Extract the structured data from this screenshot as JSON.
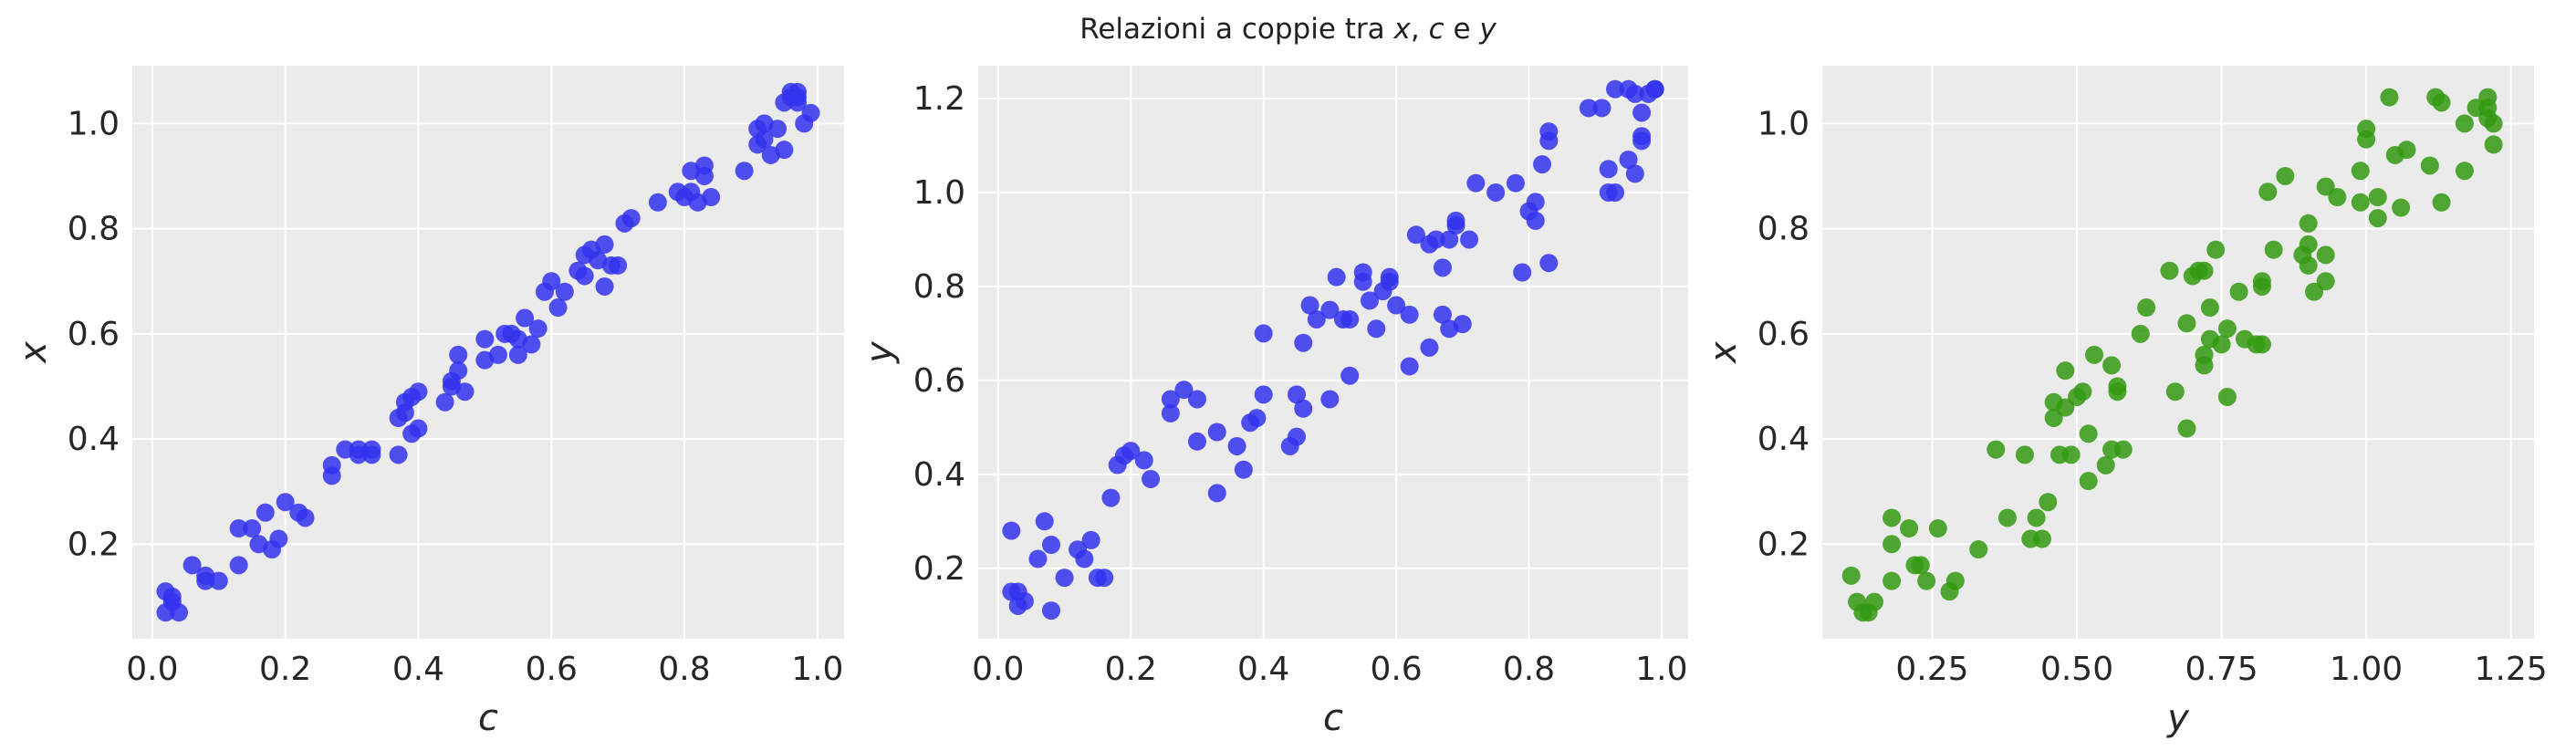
{
  "title": {
    "prefix": "Relazioni a coppie tra ",
    "v1": "x",
    "sep1": ", ",
    "v2": "c",
    "sep2": " e ",
    "v3": "y"
  },
  "chart_data": [
    {
      "type": "scatter",
      "xlabel": "c",
      "ylabel": "x",
      "color": "#3333ee",
      "xlim": [
        -0.03,
        1.04
      ],
      "ylim": [
        0.02,
        1.11
      ],
      "xticks": [
        0.0,
        0.2,
        0.4,
        0.6,
        0.8,
        1.0
      ],
      "xtick_labels": [
        "0.0",
        "0.2",
        "0.4",
        "0.6",
        "0.8",
        "1.0"
      ],
      "yticks": [
        0.2,
        0.4,
        0.6,
        0.8,
        1.0
      ],
      "ytick_labels": [
        "0.2",
        "0.4",
        "0.6",
        "0.8",
        "1.0"
      ],
      "grid": true,
      "points": [
        [
          0.02,
          0.11
        ],
        [
          0.03,
          0.09
        ],
        [
          0.02,
          0.07
        ],
        [
          0.04,
          0.07
        ],
        [
          0.03,
          0.1
        ],
        [
          0.06,
          0.16
        ],
        [
          0.08,
          0.14
        ],
        [
          0.08,
          0.13
        ],
        [
          0.1,
          0.13
        ],
        [
          0.13,
          0.16
        ],
        [
          0.13,
          0.23
        ],
        [
          0.15,
          0.23
        ],
        [
          0.16,
          0.2
        ],
        [
          0.17,
          0.26
        ],
        [
          0.18,
          0.19
        ],
        [
          0.19,
          0.21
        ],
        [
          0.2,
          0.28
        ],
        [
          0.22,
          0.26
        ],
        [
          0.23,
          0.25
        ],
        [
          0.27,
          0.33
        ],
        [
          0.27,
          0.35
        ],
        [
          0.29,
          0.38
        ],
        [
          0.31,
          0.38
        ],
        [
          0.31,
          0.37
        ],
        [
          0.33,
          0.37
        ],
        [
          0.33,
          0.38
        ],
        [
          0.37,
          0.37
        ],
        [
          0.37,
          0.44
        ],
        [
          0.38,
          0.47
        ],
        [
          0.38,
          0.45
        ],
        [
          0.39,
          0.48
        ],
        [
          0.39,
          0.41
        ],
        [
          0.4,
          0.42
        ],
        [
          0.4,
          0.49
        ],
        [
          0.44,
          0.47
        ],
        [
          0.45,
          0.5
        ],
        [
          0.45,
          0.51
        ],
        [
          0.46,
          0.53
        ],
        [
          0.46,
          0.56
        ],
        [
          0.47,
          0.49
        ],
        [
          0.5,
          0.59
        ],
        [
          0.5,
          0.55
        ],
        [
          0.52,
          0.56
        ],
        [
          0.53,
          0.6
        ],
        [
          0.54,
          0.6
        ],
        [
          0.55,
          0.59
        ],
        [
          0.55,
          0.56
        ],
        [
          0.56,
          0.63
        ],
        [
          0.57,
          0.58
        ],
        [
          0.58,
          0.61
        ],
        [
          0.59,
          0.68
        ],
        [
          0.6,
          0.7
        ],
        [
          0.61,
          0.65
        ],
        [
          0.62,
          0.68
        ],
        [
          0.64,
          0.72
        ],
        [
          0.65,
          0.71
        ],
        [
          0.65,
          0.75
        ],
        [
          0.66,
          0.76
        ],
        [
          0.67,
          0.74
        ],
        [
          0.68,
          0.77
        ],
        [
          0.68,
          0.69
        ],
        [
          0.69,
          0.73
        ],
        [
          0.7,
          0.73
        ],
        [
          0.71,
          0.81
        ],
        [
          0.72,
          0.82
        ],
        [
          0.76,
          0.85
        ],
        [
          0.79,
          0.87
        ],
        [
          0.8,
          0.86
        ],
        [
          0.81,
          0.87
        ],
        [
          0.81,
          0.91
        ],
        [
          0.82,
          0.85
        ],
        [
          0.83,
          0.9
        ],
        [
          0.83,
          0.92
        ],
        [
          0.84,
          0.86
        ],
        [
          0.89,
          0.91
        ],
        [
          0.91,
          0.96
        ],
        [
          0.91,
          0.99
        ],
        [
          0.92,
          0.97
        ],
        [
          0.92,
          1.0
        ],
        [
          0.93,
          0.94
        ],
        [
          0.94,
          0.99
        ],
        [
          0.95,
          0.95
        ],
        [
          0.96,
          1.05
        ],
        [
          0.97,
          1.05
        ],
        [
          0.97,
          1.04
        ],
        [
          0.98,
          1.0
        ],
        [
          0.99,
          1.02
        ],
        [
          0.95,
          1.04
        ],
        [
          0.96,
          1.06
        ],
        [
          0.97,
          1.06
        ]
      ]
    },
    {
      "type": "scatter",
      "xlabel": "c",
      "ylabel": "y",
      "color": "#3333ee",
      "xlim": [
        -0.03,
        1.04
      ],
      "ylim": [
        0.05,
        1.27
      ],
      "xticks": [
        0.0,
        0.2,
        0.4,
        0.6,
        0.8,
        1.0
      ],
      "xtick_labels": [
        "0.0",
        "0.2",
        "0.4",
        "0.6",
        "0.8",
        "1.0"
      ],
      "yticks": [
        0.2,
        0.4,
        0.6,
        0.8,
        1.0,
        1.2
      ],
      "ytick_labels": [
        "0.2",
        "0.4",
        "0.6",
        "0.8",
        "1.0",
        "1.2"
      ],
      "grid": true,
      "points": [
        [
          0.02,
          0.28
        ],
        [
          0.02,
          0.15
        ],
        [
          0.03,
          0.15
        ],
        [
          0.03,
          0.12
        ],
        [
          0.04,
          0.13
        ],
        [
          0.06,
          0.22
        ],
        [
          0.07,
          0.3
        ],
        [
          0.08,
          0.11
        ],
        [
          0.08,
          0.25
        ],
        [
          0.1,
          0.18
        ],
        [
          0.12,
          0.24
        ],
        [
          0.13,
          0.22
        ],
        [
          0.14,
          0.26
        ],
        [
          0.15,
          0.18
        ],
        [
          0.16,
          0.18
        ],
        [
          0.17,
          0.35
        ],
        [
          0.18,
          0.42
        ],
        [
          0.19,
          0.44
        ],
        [
          0.2,
          0.45
        ],
        [
          0.22,
          0.43
        ],
        [
          0.23,
          0.39
        ],
        [
          0.26,
          0.56
        ],
        [
          0.26,
          0.53
        ],
        [
          0.28,
          0.58
        ],
        [
          0.3,
          0.56
        ],
        [
          0.3,
          0.47
        ],
        [
          0.33,
          0.36
        ],
        [
          0.33,
          0.49
        ],
        [
          0.36,
          0.46
        ],
        [
          0.37,
          0.41
        ],
        [
          0.38,
          0.51
        ],
        [
          0.39,
          0.52
        ],
        [
          0.4,
          0.57
        ],
        [
          0.4,
          0.7
        ],
        [
          0.44,
          0.46
        ],
        [
          0.45,
          0.57
        ],
        [
          0.45,
          0.48
        ],
        [
          0.46,
          0.54
        ],
        [
          0.46,
          0.68
        ],
        [
          0.47,
          0.76
        ],
        [
          0.48,
          0.73
        ],
        [
          0.5,
          0.56
        ],
        [
          0.5,
          0.75
        ],
        [
          0.51,
          0.82
        ],
        [
          0.52,
          0.73
        ],
        [
          0.53,
          0.73
        ],
        [
          0.53,
          0.61
        ],
        [
          0.55,
          0.81
        ],
        [
          0.55,
          0.83
        ],
        [
          0.56,
          0.77
        ],
        [
          0.57,
          0.71
        ],
        [
          0.58,
          0.79
        ],
        [
          0.59,
          0.81
        ],
        [
          0.59,
          0.82
        ],
        [
          0.6,
          0.76
        ],
        [
          0.62,
          0.74
        ],
        [
          0.62,
          0.63
        ],
        [
          0.63,
          0.91
        ],
        [
          0.65,
          0.67
        ],
        [
          0.65,
          0.89
        ],
        [
          0.66,
          0.9
        ],
        [
          0.67,
          0.74
        ],
        [
          0.67,
          0.84
        ],
        [
          0.68,
          0.71
        ],
        [
          0.68,
          0.9
        ],
        [
          0.69,
          0.93
        ],
        [
          0.69,
          0.94
        ],
        [
          0.7,
          0.72
        ],
        [
          0.71,
          0.9
        ],
        [
          0.72,
          1.02
        ],
        [
          0.75,
          1.0
        ],
        [
          0.78,
          1.02
        ],
        [
          0.79,
          0.83
        ],
        [
          0.8,
          0.96
        ],
        [
          0.81,
          0.94
        ],
        [
          0.81,
          0.98
        ],
        [
          0.82,
          1.06
        ],
        [
          0.83,
          1.11
        ],
        [
          0.83,
          1.13
        ],
        [
          0.83,
          0.85
        ],
        [
          0.89,
          1.18
        ],
        [
          0.91,
          1.18
        ],
        [
          0.92,
          1.0
        ],
        [
          0.93,
          1.0
        ],
        [
          0.92,
          1.05
        ],
        [
          0.93,
          1.22
        ],
        [
          0.95,
          1.22
        ],
        [
          0.95,
          1.07
        ],
        [
          0.96,
          1.04
        ],
        [
          0.97,
          1.11
        ],
        [
          0.97,
          1.12
        ],
        [
          0.97,
          1.17
        ],
        [
          0.98,
          1.21
        ],
        [
          0.99,
          1.22
        ],
        [
          0.99,
          1.22
        ],
        [
          0.96,
          1.21
        ]
      ]
    },
    {
      "type": "scatter",
      "xlabel": "y",
      "ylabel": "x",
      "color": "#339911",
      "xlim": [
        0.06,
        1.29
      ],
      "ylim": [
        0.02,
        1.11
      ],
      "xticks": [
        0.25,
        0.5,
        0.75,
        1.0,
        1.25
      ],
      "xtick_labels": [
        "0.25",
        "0.50",
        "0.75",
        "1.00",
        "1.25"
      ],
      "yticks": [
        0.2,
        0.4,
        0.6,
        0.8,
        1.0
      ],
      "ytick_labels": [
        "0.2",
        "0.4",
        "0.6",
        "0.8",
        "1.0"
      ],
      "grid": true,
      "points": [
        [
          0.11,
          0.14
        ],
        [
          0.12,
          0.09
        ],
        [
          0.13,
          0.07
        ],
        [
          0.14,
          0.07
        ],
        [
          0.15,
          0.09
        ],
        [
          0.18,
          0.25
        ],
        [
          0.18,
          0.2
        ],
        [
          0.18,
          0.13
        ],
        [
          0.21,
          0.23
        ],
        [
          0.22,
          0.16
        ],
        [
          0.23,
          0.16
        ],
        [
          0.24,
          0.13
        ],
        [
          0.26,
          0.23
        ],
        [
          0.28,
          0.11
        ],
        [
          0.29,
          0.13
        ],
        [
          0.33,
          0.19
        ],
        [
          0.36,
          0.38
        ],
        [
          0.38,
          0.25
        ],
        [
          0.41,
          0.37
        ],
        [
          0.42,
          0.21
        ],
        [
          0.43,
          0.25
        ],
        [
          0.44,
          0.21
        ],
        [
          0.45,
          0.28
        ],
        [
          0.46,
          0.47
        ],
        [
          0.46,
          0.44
        ],
        [
          0.47,
          0.37
        ],
        [
          0.48,
          0.46
        ],
        [
          0.48,
          0.53
        ],
        [
          0.49,
          0.37
        ],
        [
          0.5,
          0.48
        ],
        [
          0.51,
          0.49
        ],
        [
          0.52,
          0.41
        ],
        [
          0.52,
          0.32
        ],
        [
          0.53,
          0.56
        ],
        [
          0.55,
          0.35
        ],
        [
          0.56,
          0.54
        ],
        [
          0.56,
          0.38
        ],
        [
          0.57,
          0.5
        ],
        [
          0.57,
          0.49
        ],
        [
          0.58,
          0.38
        ],
        [
          0.61,
          0.6
        ],
        [
          0.62,
          0.65
        ],
        [
          0.66,
          0.72
        ],
        [
          0.67,
          0.49
        ],
        [
          0.69,
          0.42
        ],
        [
          0.69,
          0.62
        ],
        [
          0.7,
          0.71
        ],
        [
          0.71,
          0.72
        ],
        [
          0.72,
          0.72
        ],
        [
          0.72,
          0.54
        ],
        [
          0.72,
          0.56
        ],
        [
          0.73,
          0.59
        ],
        [
          0.73,
          0.65
        ],
        [
          0.74,
          0.76
        ],
        [
          0.75,
          0.58
        ],
        [
          0.76,
          0.61
        ],
        [
          0.76,
          0.48
        ],
        [
          0.78,
          0.68
        ],
        [
          0.79,
          0.59
        ],
        [
          0.81,
          0.58
        ],
        [
          0.82,
          0.58
        ],
        [
          0.82,
          0.69
        ],
        [
          0.82,
          0.7
        ],
        [
          0.83,
          0.87
        ],
        [
          0.84,
          0.76
        ],
        [
          0.86,
          0.9
        ],
        [
          0.89,
          0.75
        ],
        [
          0.9,
          0.81
        ],
        [
          0.9,
          0.73
        ],
        [
          0.9,
          0.77
        ],
        [
          0.91,
          0.68
        ],
        [
          0.93,
          0.75
        ],
        [
          0.93,
          0.7
        ],
        [
          0.93,
          0.88
        ],
        [
          0.95,
          0.86
        ],
        [
          0.99,
          0.91
        ],
        [
          0.99,
          0.85
        ],
        [
          1.0,
          0.97
        ],
        [
          1.0,
          0.99
        ],
        [
          1.02,
          0.82
        ],
        [
          1.02,
          0.86
        ],
        [
          1.04,
          1.05
        ],
        [
          1.05,
          0.94
        ],
        [
          1.06,
          0.84
        ],
        [
          1.07,
          0.95
        ],
        [
          1.11,
          0.92
        ],
        [
          1.12,
          1.05
        ],
        [
          1.13,
          0.85
        ],
        [
          1.13,
          1.04
        ],
        [
          1.17,
          0.91
        ],
        [
          1.17,
          1.0
        ],
        [
          1.19,
          1.03
        ],
        [
          1.21,
          1.03
        ],
        [
          1.21,
          1.05
        ],
        [
          1.21,
          1.01
        ],
        [
          1.22,
          0.96
        ],
        [
          1.22,
          1.0
        ]
      ]
    }
  ]
}
